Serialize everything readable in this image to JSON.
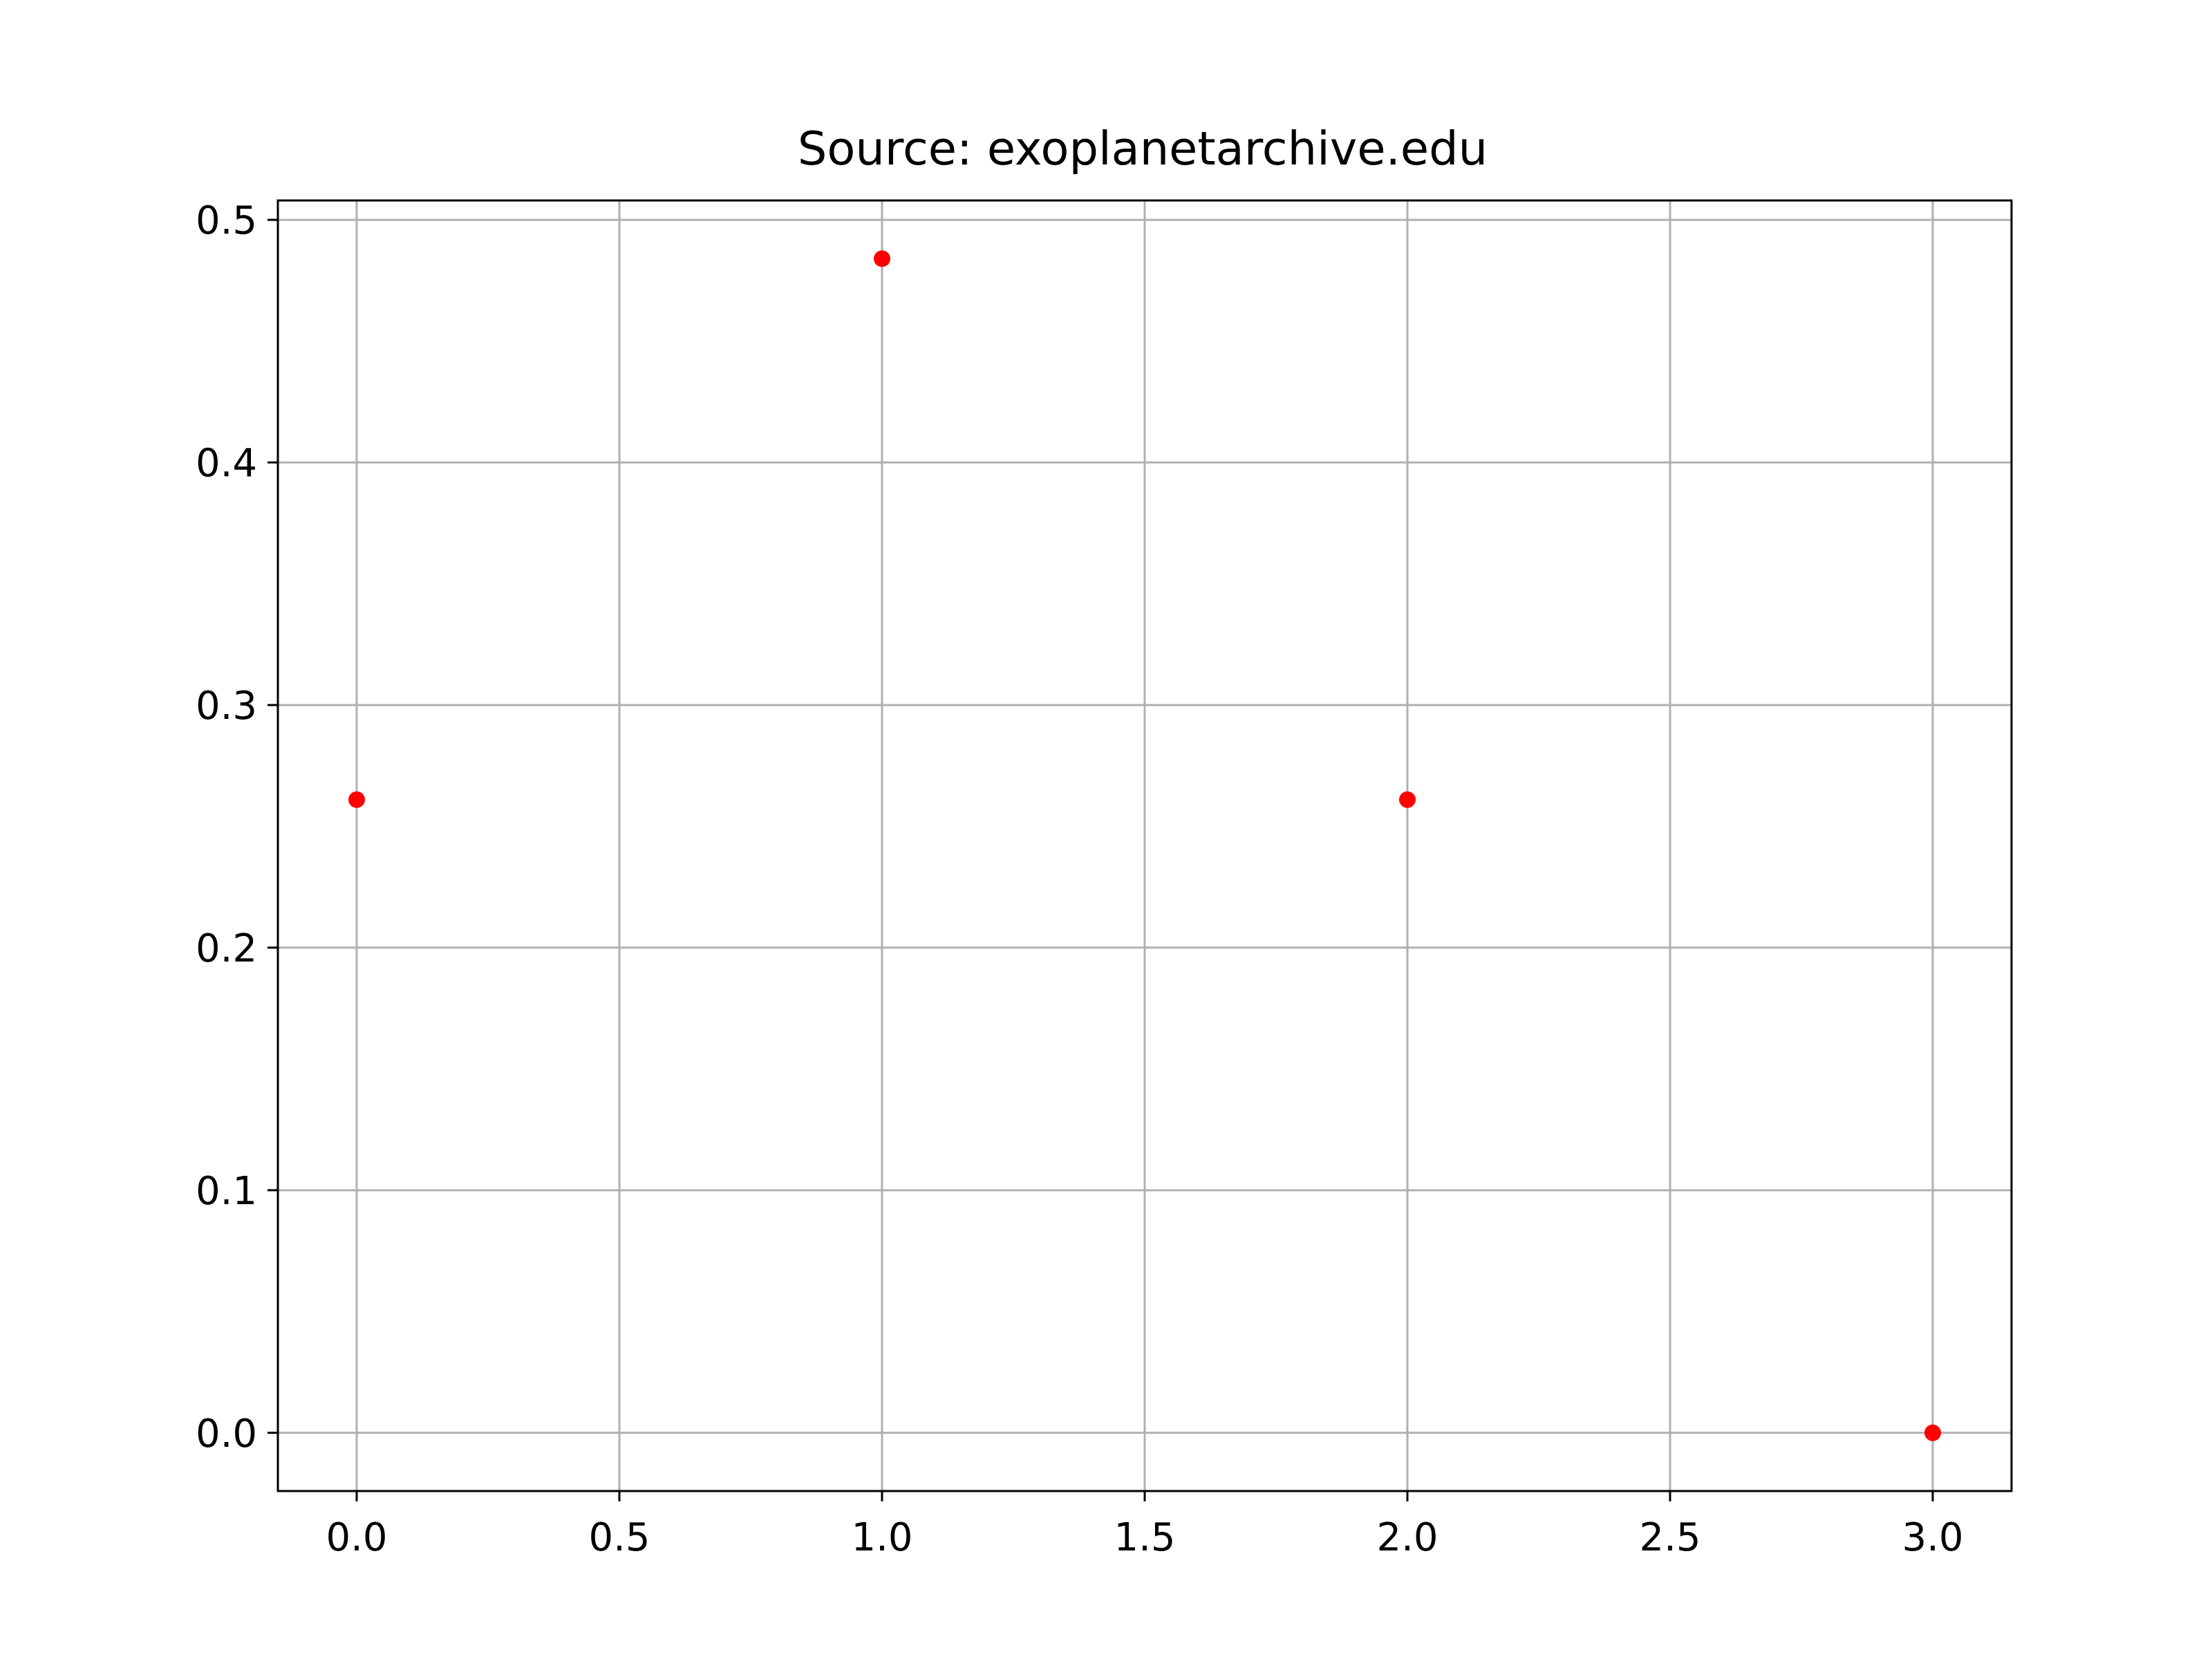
{
  "chart_data": {
    "type": "scatter",
    "title": "Source: exoplanetarchive.edu",
    "xlabel": "",
    "ylabel": "",
    "x": [
      0.0,
      1.0,
      2.0,
      3.0
    ],
    "y": [
      0.261,
      0.484,
      0.261,
      0.0
    ],
    "xlim": [
      -0.15,
      3.15
    ],
    "ylim": [
      -0.024,
      0.508
    ],
    "xticks": [
      0.0,
      0.5,
      1.0,
      1.5,
      2.0,
      2.5,
      3.0
    ],
    "xtick_labels": [
      "0.0",
      "0.5",
      "1.0",
      "1.5",
      "2.0",
      "2.5",
      "3.0"
    ],
    "yticks": [
      0.0,
      0.1,
      0.2,
      0.3,
      0.4,
      0.5
    ],
    "ytick_labels": [
      "0.0",
      "0.1",
      "0.2",
      "0.3",
      "0.4",
      "0.5"
    ],
    "grid": true,
    "marker_color": "#ff0000",
    "grid_color": "#b0b0b0"
  }
}
